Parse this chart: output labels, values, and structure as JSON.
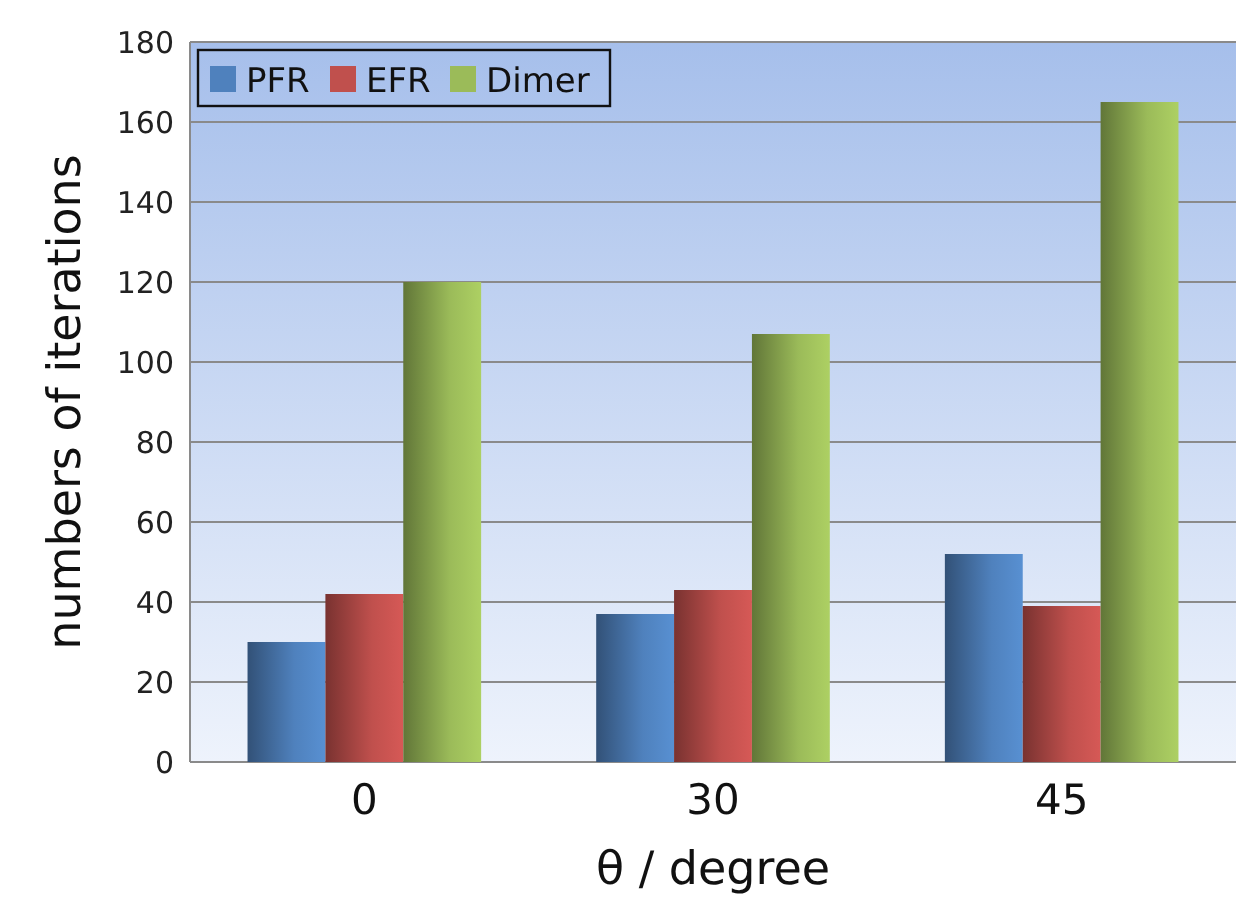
{
  "chart_data": {
    "type": "bar",
    "xlabel": "θ / degree",
    "ylabel": "numbers of iterations",
    "categories": [
      "0",
      "30",
      "45"
    ],
    "series": [
      {
        "name": "PFR",
        "color": "#4f81bd",
        "values": [
          30,
          37,
          52
        ]
      },
      {
        "name": "EFR",
        "color": "#c0504d",
        "values": [
          42,
          43,
          39
        ]
      },
      {
        "name": "Dimer",
        "color": "#9bbb59",
        "values": [
          120,
          107,
          165
        ]
      }
    ],
    "ylim": [
      0,
      180
    ],
    "yticks": [
      0,
      20,
      40,
      60,
      80,
      100,
      120,
      140,
      160,
      180
    ],
    "grid": "y",
    "legend": "top left"
  }
}
